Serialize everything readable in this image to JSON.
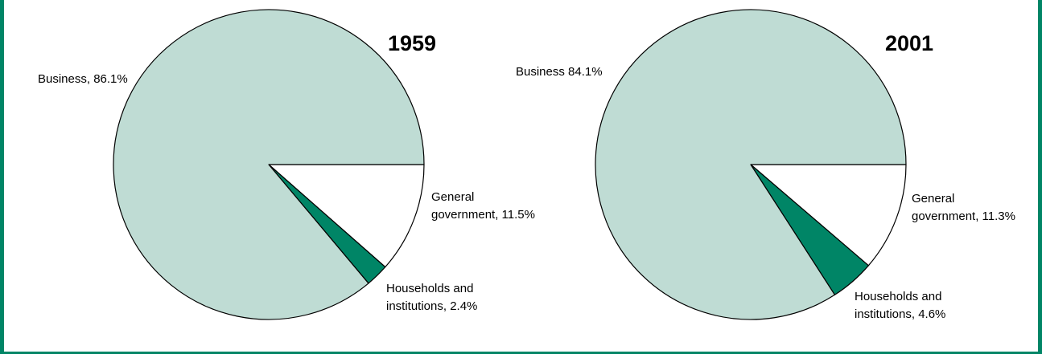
{
  "colors": {
    "business": "#bfdcd4",
    "households": "#008566",
    "government": "#ffffff",
    "frame": "#008566",
    "outline": "#000000"
  },
  "chart_data": [
    {
      "type": "pie",
      "title": "1959",
      "slices": [
        {
          "label_lines": [
            "Business, 86.1%"
          ],
          "value": 86.1,
          "color_key": "business"
        },
        {
          "label_lines": [
            "General",
            "government, 11.5%"
          ],
          "value": 11.5,
          "color_key": "government"
        },
        {
          "label_lines": [
            "Households and",
            "institutions, 2.4%"
          ],
          "value": 2.4,
          "color_key": "households"
        }
      ]
    },
    {
      "type": "pie",
      "title": "2001",
      "slices": [
        {
          "label_lines": [
            "Business 84.1%"
          ],
          "value": 84.1,
          "color_key": "business"
        },
        {
          "label_lines": [
            "General",
            "government, 11.3%"
          ],
          "value": 11.3,
          "color_key": "government"
        },
        {
          "label_lines": [
            "Households and",
            "institutions, 4.6%"
          ],
          "value": 4.6,
          "color_key": "households"
        }
      ]
    }
  ]
}
